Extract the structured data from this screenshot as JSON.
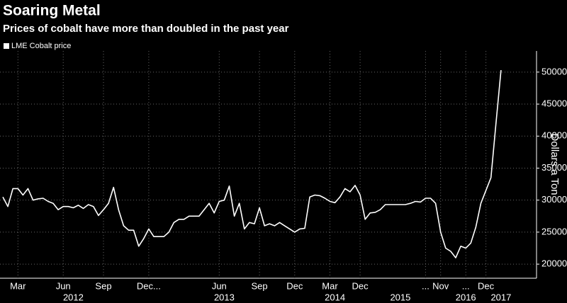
{
  "chart_data": {
    "type": "line",
    "title": "Soaring Metal",
    "subtitle": "Prices of cobalt have more than doubled in the past year",
    "y_label": "Dollars a Ton",
    "legend": "top-left",
    "grid": true,
    "ylim": [
      17800,
      53300
    ],
    "yticks": [
      20000,
      25000,
      30000,
      35000,
      40000,
      45000,
      50000
    ],
    "categories": [
      null,
      null,
      null,
      "Mar",
      null,
      null,
      null,
      null,
      null,
      null,
      null,
      null,
      "Jun",
      null,
      null,
      null,
      null,
      null,
      null,
      null,
      "Sep",
      null,
      null,
      null,
      null,
      null,
      null,
      null,
      null,
      "Dec...",
      null,
      null,
      null,
      null,
      null,
      null,
      null,
      null,
      null,
      null,
      null,
      null,
      null,
      "Jun",
      null,
      null,
      null,
      null,
      null,
      null,
      null,
      "Sep",
      null,
      null,
      null,
      null,
      null,
      null,
      "Dec",
      null,
      null,
      null,
      null,
      null,
      null,
      "Mar",
      null,
      null,
      null,
      null,
      null,
      "Dec",
      null,
      null,
      null,
      null,
      null,
      null,
      null,
      null,
      null,
      null,
      null,
      null,
      "...",
      null,
      null,
      "Nov",
      null,
      null,
      null,
      null,
      "...",
      null,
      null,
      null,
      "Dec",
      null,
      null,
      null
    ],
    "year_categories": [
      null,
      null,
      null,
      null,
      null,
      null,
      null,
      null,
      null,
      null,
      null,
      null,
      null,
      null,
      "2012",
      null,
      null,
      null,
      null,
      null,
      null,
      null,
      null,
      null,
      null,
      null,
      null,
      null,
      null,
      null,
      null,
      null,
      null,
      null,
      null,
      null,
      null,
      null,
      null,
      null,
      null,
      null,
      null,
      null,
      "2013",
      null,
      null,
      null,
      null,
      null,
      null,
      null,
      null,
      null,
      null,
      null,
      null,
      null,
      null,
      null,
      null,
      null,
      null,
      null,
      null,
      null,
      "2014",
      null,
      null,
      null,
      null,
      null,
      null,
      null,
      null,
      null,
      null,
      null,
      null,
      "2015",
      null,
      null,
      null,
      null,
      null,
      null,
      null,
      null,
      null,
      null,
      null,
      null,
      "2016",
      null,
      null,
      null,
      null,
      null,
      null,
      "2017"
    ],
    "series": [
      {
        "name": "LME Cobalt price",
        "color": "#ffffff",
        "values": [
          30500,
          29000,
          31800,
          31800,
          30800,
          31800,
          30000,
          30200,
          30300,
          29800,
          29500,
          28500,
          29000,
          29000,
          28800,
          29200,
          28700,
          29300,
          29000,
          27600,
          28500,
          29500,
          32000,
          28500,
          26000,
          25300,
          25300,
          22800,
          24000,
          25500,
          24300,
          24300,
          24300,
          25000,
          26500,
          27000,
          27000,
          27500,
          27500,
          27500,
          28500,
          29500,
          28000,
          29800,
          30000,
          32200,
          27500,
          29500,
          25500,
          26500,
          26300,
          28800,
          26000,
          26300,
          26000,
          26500,
          26000,
          25500,
          25000,
          25500,
          25600,
          30500,
          30800,
          30700,
          30300,
          29800,
          29600,
          30500,
          31800,
          31300,
          32300,
          30800,
          27000,
          28000,
          28100,
          28500,
          29300,
          29300,
          29300,
          29300,
          29300,
          29500,
          29800,
          29700,
          30300,
          30300,
          29500,
          25000,
          22500,
          22000,
          21000,
          22800,
          22500,
          23300,
          25800,
          29500,
          31500,
          33500,
          42000,
          50300
        ]
      }
    ]
  }
}
